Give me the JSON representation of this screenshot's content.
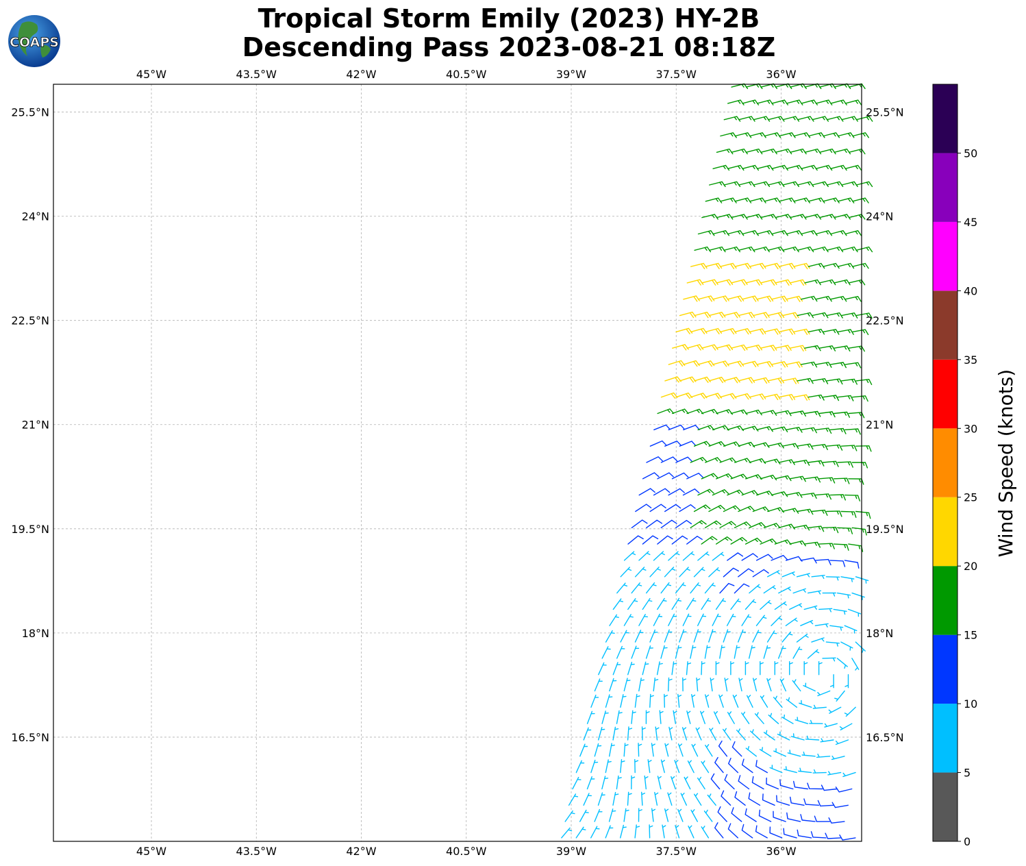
{
  "title": {
    "line1": "Tropical Storm Emily (2023) HY-2B",
    "line2": "Descending Pass 2023-08-21 08:18Z"
  },
  "logo": {
    "text": "COAPS",
    "icon": "globe-logo-icon"
  },
  "chart_data": {
    "type": "wind-barb-map",
    "lon_range": [
      -46.4,
      -34.85
    ],
    "lat_range": [
      15.0,
      25.9
    ],
    "grid": true,
    "lon_ticks": [
      {
        "value": -45.0,
        "label": "45°W"
      },
      {
        "value": -43.5,
        "label": "43.5°W"
      },
      {
        "value": -42.0,
        "label": "42°W"
      },
      {
        "value": -40.5,
        "label": "40.5°W"
      },
      {
        "value": -39.0,
        "label": "39°W"
      },
      {
        "value": -37.5,
        "label": "37.5°W"
      },
      {
        "value": -36.0,
        "label": "36°W"
      }
    ],
    "lat_ticks": [
      {
        "value": 25.5,
        "label": "25.5°N"
      },
      {
        "value": 24.0,
        "label": "24°N"
      },
      {
        "value": 22.5,
        "label": "22.5°N"
      },
      {
        "value": 21.0,
        "label": "21°N"
      },
      {
        "value": 19.5,
        "label": "19.5°N"
      },
      {
        "value": 18.0,
        "label": "18°N"
      },
      {
        "value": 16.5,
        "label": "16.5°N"
      }
    ],
    "colorbar": {
      "label": "Wind Speed (knots)",
      "ticks": [
        "0",
        "5",
        "10",
        "15",
        "20",
        "25",
        "30",
        "35",
        "40",
        "45",
        "50"
      ],
      "bins": [
        {
          "from": 0,
          "to": 5,
          "color": "#585858"
        },
        {
          "from": 5,
          "to": 10,
          "color": "#00bfff"
        },
        {
          "from": 10,
          "to": 15,
          "color": "#0037ff"
        },
        {
          "from": 15,
          "to": 20,
          "color": "#009900"
        },
        {
          "from": 20,
          "to": 25,
          "color": "#ffd700"
        },
        {
          "from": 25,
          "to": 30,
          "color": "#ff8c00"
        },
        {
          "from": 30,
          "to": 35,
          "color": "#ff0000"
        },
        {
          "from": 35,
          "to": 40,
          "color": "#8b3a2b"
        },
        {
          "from": 40,
          "to": 45,
          "color": "#ff00ff"
        },
        {
          "from": 45,
          "to": 50,
          "color": "#8800bb"
        },
        {
          "from": 50,
          "to": 55,
          "color": "#2b0055"
        }
      ]
    },
    "storm_center": {
      "lon": -35.4,
      "lat": 17.4
    },
    "swath": {
      "lat_min": 15.0,
      "lat_max": 25.9,
      "west_edge_lon_south": -39.15,
      "west_edge_lon_north": -36.7,
      "east_edge_lon": -34.9,
      "spacing_lat": 0.235,
      "spacing_lon": 0.21
    }
  }
}
